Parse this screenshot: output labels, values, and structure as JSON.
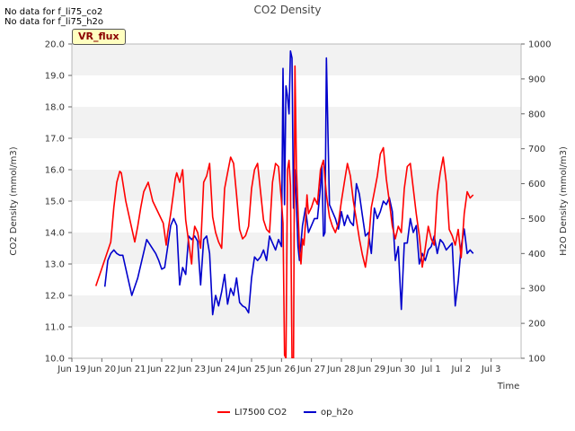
{
  "messages": [
    "No data for f_li75_co2",
    "No data for f_li75_h2o"
  ],
  "badge": "VR_flux",
  "chart_data": {
    "type": "line",
    "title": "CO2 Density",
    "xlabel": "Time",
    "ylabel": "CO2 Density (mmol/m3)",
    "y2label": "H2O Density (mmol/m3)",
    "x_ticks": [
      "Jun 19",
      "Jun 20",
      "Jun 21",
      "Jun 22",
      "Jun 23",
      "Jun 24",
      "Jun 25",
      "Jun 26",
      "Jun 27",
      "Jun 28",
      "Jun 29",
      "Jun 30",
      "Jul 1",
      "Jul 2",
      "Jul 3"
    ],
    "xlim": [
      19,
      34
    ],
    "ylim": [
      10.0,
      20.0
    ],
    "y_ticks": [
      "10.0",
      "11.0",
      "12.0",
      "13.0",
      "14.0",
      "15.0",
      "16.0",
      "17.0",
      "18.0",
      "19.0",
      "20.0"
    ],
    "y2lim": [
      100,
      1000
    ],
    "y2_ticks": [
      "100",
      "200",
      "300",
      "400",
      "500",
      "600",
      "700",
      "800",
      "900",
      "1000"
    ],
    "grid": "alternating horizontal bands",
    "legend_position": "bottom-center",
    "series": [
      {
        "name": "LI7500 CO2",
        "axis": "left",
        "color": "#ff0000",
        "x": [
          19.8,
          20.3,
          20.4,
          20.5,
          20.6,
          20.65,
          20.8,
          21.1,
          21.2,
          21.3,
          21.4,
          21.55,
          21.7,
          22.05,
          22.15,
          22.2,
          22.3,
          22.4,
          22.45,
          22.5,
          22.6,
          22.7,
          22.8,
          22.9,
          23.0,
          23.05,
          23.1,
          23.2,
          23.3,
          23.4,
          23.5,
          23.6,
          23.7,
          23.8,
          23.9,
          24.0,
          24.1,
          24.2,
          24.3,
          24.4,
          24.5,
          24.6,
          24.7,
          24.8,
          24.9,
          25.0,
          25.1,
          25.2,
          25.3,
          25.4,
          25.5,
          25.6,
          25.7,
          25.8,
          25.9,
          26.0,
          26.05,
          26.1,
          26.15,
          26.2,
          26.25,
          26.3,
          26.35,
          26.4,
          26.45,
          26.5,
          26.55,
          26.6,
          26.65,
          26.7,
          26.75,
          26.8,
          26.85,
          26.9,
          27.0,
          27.1,
          27.2,
          27.3,
          27.4,
          27.5,
          27.6,
          27.7,
          27.8,
          27.9,
          28.0,
          28.1,
          28.2,
          28.3,
          28.4,
          28.5,
          28.6,
          28.7,
          28.8,
          28.9,
          29.0,
          29.1,
          29.2,
          29.3,
          29.4,
          29.5,
          29.6,
          29.7,
          29.8,
          29.9,
          30.0,
          30.1,
          30.2,
          30.3,
          30.4,
          30.5,
          30.6,
          30.7,
          30.8,
          30.9,
          31.0,
          31.1,
          31.2,
          31.3,
          31.4,
          31.5,
          31.6,
          31.7,
          31.8,
          31.9,
          32.0,
          32.1,
          32.2,
          32.3,
          32.4
        ],
        "values": [
          12.3,
          13.7,
          14.8,
          15.6,
          15.95,
          15.9,
          15.0,
          13.7,
          14.2,
          14.8,
          15.3,
          15.6,
          15.0,
          14.3,
          13.6,
          14.0,
          14.6,
          15.3,
          15.7,
          15.9,
          15.6,
          16.0,
          14.4,
          13.7,
          13.0,
          13.8,
          14.2,
          14.0,
          13.5,
          15.6,
          15.8,
          16.2,
          14.5,
          14.0,
          13.7,
          13.5,
          15.4,
          15.9,
          16.4,
          16.2,
          15.2,
          14.1,
          13.8,
          13.9,
          14.2,
          15.4,
          16.0,
          16.2,
          15.3,
          14.4,
          14.1,
          14.0,
          15.6,
          16.2,
          16.1,
          15.0,
          14.3,
          10.1,
          10.0,
          16.0,
          16.3,
          15.5,
          10.0,
          10.0,
          19.3,
          16.0,
          14.7,
          13.5,
          13.0,
          13.8,
          13.6,
          14.3,
          15.2,
          14.6,
          14.8,
          15.1,
          14.9,
          16.0,
          16.3,
          15.2,
          14.5,
          14.2,
          14.0,
          14.3,
          15.0,
          15.6,
          16.2,
          15.8,
          15.0,
          14.4,
          13.8,
          13.3,
          12.9,
          13.6,
          14.8,
          15.3,
          15.8,
          16.5,
          16.7,
          15.7,
          15.0,
          14.2,
          13.8,
          14.2,
          14.0,
          15.4,
          16.1,
          16.2,
          15.4,
          14.6,
          13.9,
          12.9,
          13.5,
          14.2,
          13.8,
          13.6,
          15.2,
          15.9,
          16.4,
          15.6,
          14.1,
          13.9,
          13.6,
          14.1,
          13.2,
          14.6,
          15.3,
          15.1,
          15.2
        ]
      },
      {
        "name": "op_h2o",
        "axis": "right",
        "color": "#0000cc",
        "x": [
          20.1,
          20.2,
          20.3,
          20.4,
          20.5,
          20.6,
          20.7,
          21.0,
          21.2,
          21.5,
          21.8,
          21.9,
          22.0,
          22.1,
          22.2,
          22.3,
          22.4,
          22.5,
          22.6,
          22.7,
          22.8,
          22.9,
          23.0,
          23.1,
          23.2,
          23.3,
          23.4,
          23.5,
          23.6,
          23.7,
          23.8,
          23.9,
          24.0,
          24.1,
          24.2,
          24.3,
          24.4,
          24.5,
          24.6,
          24.7,
          24.8,
          24.9,
          25.0,
          25.1,
          25.2,
          25.3,
          25.4,
          25.5,
          25.6,
          25.7,
          25.8,
          25.9,
          26.0,
          26.05,
          26.1,
          26.15,
          26.2,
          26.25,
          26.3,
          26.35,
          26.4,
          26.45,
          26.5,
          26.55,
          26.6,
          26.7,
          26.8,
          26.9,
          27.0,
          27.1,
          27.2,
          27.3,
          27.35,
          27.4,
          27.45,
          27.5,
          27.6,
          27.7,
          27.8,
          27.9,
          28.0,
          28.1,
          28.2,
          28.3,
          28.4,
          28.5,
          28.6,
          28.7,
          28.8,
          28.9,
          29.0,
          29.1,
          29.2,
          29.3,
          29.4,
          29.5,
          29.6,
          29.7,
          29.8,
          29.9,
          30.0,
          30.1,
          30.2,
          30.3,
          30.4,
          30.5,
          30.6,
          30.7,
          30.8,
          30.9,
          31.0,
          31.1,
          31.2,
          31.3,
          31.4,
          31.5,
          31.6,
          31.7,
          31.8,
          31.9,
          32.0,
          32.1,
          32.2,
          32.3,
          32.4
        ],
        "values": [
          305,
          380,
          400,
          410,
          400,
          395,
          395,
          280,
          330,
          440,
          400,
          380,
          355,
          360,
          420,
          480,
          500,
          480,
          310,
          360,
          340,
          450,
          440,
          450,
          435,
          310,
          440,
          450,
          400,
          225,
          280,
          250,
          290,
          340,
          255,
          300,
          280,
          330,
          260,
          250,
          245,
          230,
          330,
          390,
          380,
          390,
          410,
          380,
          450,
          430,
          410,
          440,
          420,
          930,
          540,
          880,
          850,
          800,
          980,
          960,
          530,
          640,
          530,
          420,
          380,
          480,
          530,
          460,
          480,
          500,
          500,
          590,
          650,
          450,
          460,
          960,
          540,
          520,
          500,
          470,
          520,
          480,
          510,
          490,
          480,
          600,
          570,
          510,
          450,
          460,
          400,
          530,
          500,
          520,
          550,
          540,
          560,
          520,
          380,
          420,
          240,
          430,
          430,
          500,
          460,
          480,
          370,
          400,
          380,
          410,
          420,
          450,
          400,
          440,
          430,
          410,
          420,
          430,
          250,
          320,
          420,
          470,
          400,
          410,
          400
        ]
      }
    ]
  }
}
